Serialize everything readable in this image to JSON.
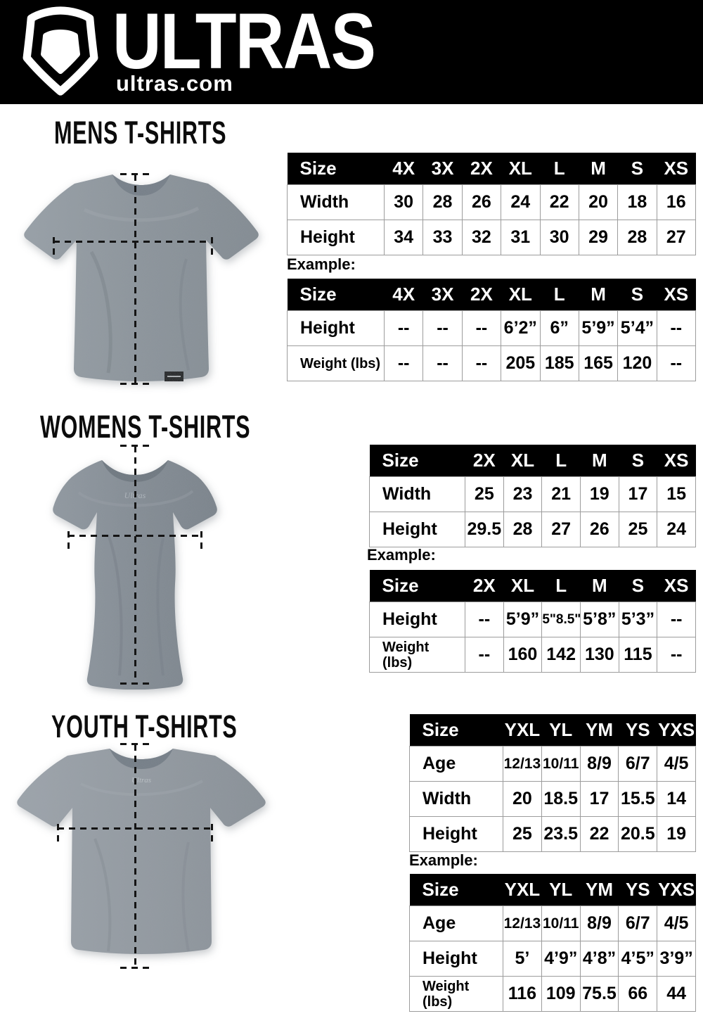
{
  "header": {
    "brand": "ULTRAS",
    "domain": "ultras.com",
    "logo": "pentagon-shield-icon"
  },
  "colors": {
    "header_bg": "#000000",
    "table_header_bg": "#000000",
    "table_border": "#9c9c9c",
    "shirt_gray_mens": "#8d959c",
    "shirt_gray_womens": "#858d95",
    "shirt_gray_youth": "#949ba2"
  },
  "sections": [
    {
      "title": "MENS T-SHIRTS",
      "example_label": "Example:",
      "size_table": {
        "header": [
          "Size",
          "4X",
          "3X",
          "2X",
          "XL",
          "L",
          "M",
          "S",
          "XS"
        ],
        "rows": [
          {
            "label": "Width",
            "values": [
              "30",
              "28",
              "26",
              "24",
              "22",
              "20",
              "18",
              "16"
            ]
          },
          {
            "label": "Height",
            "values": [
              "34",
              "33",
              "32",
              "31",
              "30",
              "29",
              "28",
              "27"
            ]
          }
        ]
      },
      "example_table": {
        "header": [
          "Size",
          "4X",
          "3X",
          "2X",
          "XL",
          "L",
          "M",
          "S",
          "XS"
        ],
        "rows": [
          {
            "label": "Height",
            "values": [
              "--",
              "--",
              "--",
              "6’2”",
              "6”",
              "5’9”",
              "5’4”",
              "--"
            ]
          },
          {
            "label": "Weight (lbs)",
            "values": [
              "--",
              "--",
              "--",
              "205",
              "185",
              "165",
              "120",
              "--"
            ]
          }
        ]
      }
    },
    {
      "title": "WOMENS T-SHIRTS",
      "example_label": "Example:",
      "size_table": {
        "header": [
          "Size",
          "2X",
          "XL",
          "L",
          "M",
          "S",
          "XS"
        ],
        "rows": [
          {
            "label": "Width",
            "values": [
              "25",
              "23",
              "21",
              "19",
              "17",
              "15"
            ]
          },
          {
            "label": "Height",
            "values": [
              "29.5",
              "28",
              "27",
              "26",
              "25",
              "24"
            ]
          }
        ]
      },
      "example_table": {
        "header": [
          "Size",
          "2X",
          "XL",
          "L",
          "M",
          "S",
          "XS"
        ],
        "rows": [
          {
            "label": "Height",
            "values": [
              "--",
              "5’9”",
              "5\"8.5\"",
              "5’8”",
              "5’3”",
              "--"
            ]
          },
          {
            "label": "Weight (lbs)",
            "values": [
              "--",
              "160",
              "142",
              "130",
              "115",
              "--"
            ]
          }
        ]
      }
    },
    {
      "title": "YOUTH T-SHIRTS",
      "example_label": "Example:",
      "size_table": {
        "header": [
          "Size",
          "YXL",
          "YL",
          "YM",
          "YS",
          "YXS"
        ],
        "rows": [
          {
            "label": "Age",
            "values": [
              "12/13",
              "10/11",
              "8/9",
              "6/7",
              "4/5"
            ]
          },
          {
            "label": "Width",
            "values": [
              "20",
              "18.5",
              "17",
              "15.5",
              "14"
            ]
          },
          {
            "label": "Height",
            "values": [
              "25",
              "23.5",
              "22",
              "20.5",
              "19"
            ]
          }
        ]
      },
      "example_table": {
        "header": [
          "Size",
          "YXL",
          "YL",
          "YM",
          "YS",
          "YXS"
        ],
        "rows": [
          {
            "label": "Age",
            "values": [
              "12/13",
              "10/11",
              "8/9",
              "6/7",
              "4/5"
            ]
          },
          {
            "label": "Height",
            "values": [
              "5’",
              "4’9”",
              "4’8”",
              "4’5”",
              "3’9”"
            ]
          },
          {
            "label": "Weight (lbs)",
            "values": [
              "116",
              "109",
              "75.5",
              "66",
              "44"
            ]
          }
        ]
      }
    }
  ]
}
